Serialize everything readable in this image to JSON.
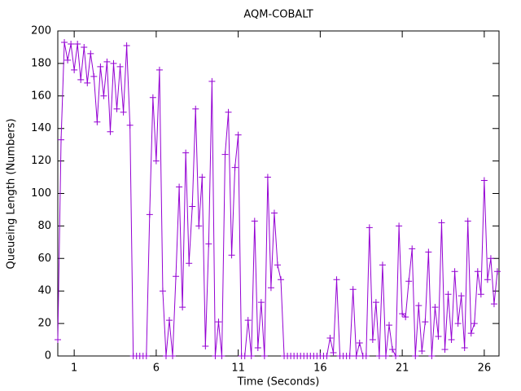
{
  "chart_data": {
    "type": "line",
    "title": "AQM-COBALT",
    "x_label": "Time (Seconds)",
    "y_label": "Queueing Length (Numbers)",
    "color": "#9400d3",
    "x": [
      0,
      0.2,
      0.4,
      0.6,
      0.8,
      1,
      1.2,
      1.4,
      1.6,
      1.8,
      2,
      2.2,
      2.4,
      2.6,
      2.8,
      3,
      3.2,
      3.4,
      3.6,
      3.8,
      4,
      4.2,
      4.4,
      4.6,
      4.8,
      5,
      5.2,
      5.4,
      5.6,
      5.8,
      6,
      6.2,
      6.4,
      6.6,
      6.8,
      7,
      7.2,
      7.4,
      7.6,
      7.8,
      8,
      8.2,
      8.4,
      8.6,
      8.8,
      9,
      9.2,
      9.4,
      9.6,
      9.8,
      10,
      10.2,
      10.4,
      10.6,
      10.8,
      11,
      11.2,
      11.4,
      11.6,
      11.8,
      12,
      12.2,
      12.4,
      12.6,
      12.8,
      13,
      13.2,
      13.4,
      13.6,
      13.8,
      14,
      14.2,
      14.4,
      14.6,
      14.8,
      15,
      15.2,
      15.4,
      15.6,
      15.8,
      16,
      16.2,
      16.4,
      16.6,
      16.8,
      17,
      17.2,
      17.4,
      17.6,
      17.8,
      18,
      18.2,
      18.4,
      18.6,
      18.8,
      19,
      19.2,
      19.4,
      19.6,
      19.8,
      20,
      20.2,
      20.4,
      20.6,
      20.8,
      21,
      21.2,
      21.4,
      21.6,
      21.8,
      22,
      22.2,
      22.4,
      22.6,
      22.8,
      23,
      23.2,
      23.4,
      23.6,
      23.8,
      24,
      24.2,
      24.4,
      24.6,
      24.8,
      25,
      25.2,
      25.4,
      25.6,
      25.8,
      26,
      26.2,
      26.4,
      26.6,
      26.8
    ],
    "values": [
      10,
      133,
      193,
      182,
      192,
      176,
      192,
      170,
      190,
      168,
      186,
      172,
      144,
      178,
      160,
      181,
      138,
      180,
      152,
      178,
      150,
      191,
      142,
      0,
      0,
      0,
      0,
      0,
      87,
      159,
      120,
      176,
      40,
      0,
      22,
      0,
      49,
      104,
      30,
      125,
      57,
      92,
      152,
      80,
      110,
      6,
      69,
      169,
      0,
      21,
      0,
      124,
      150,
      62,
      116,
      136,
      0,
      0,
      22,
      0,
      83,
      5,
      33,
      0,
      110,
      42,
      88,
      56,
      47,
      0,
      0,
      0,
      0,
      0,
      0,
      0,
      0,
      0,
      0,
      0,
      0,
      0,
      0,
      11,
      2,
      47,
      0,
      0,
      0,
      0,
      41,
      0,
      8,
      0,
      0,
      79,
      10,
      33,
      0,
      56,
      0,
      19,
      4,
      0,
      80,
      26,
      24,
      46,
      66,
      0,
      31,
      3,
      21,
      64,
      0,
      30,
      12,
      82,
      4,
      38,
      10,
      52,
      20,
      37,
      5,
      83,
      14,
      20,
      52,
      38,
      108,
      47,
      60,
      32,
      52
    ],
    "xlim": [
      0,
      26.9
    ],
    "xticks": [
      1,
      6,
      11,
      16,
      21,
      26
    ],
    "ylim": [
      0,
      200
    ],
    "yticks": [
      0,
      20,
      40,
      60,
      80,
      100,
      120,
      140,
      160,
      180,
      200
    ]
  }
}
